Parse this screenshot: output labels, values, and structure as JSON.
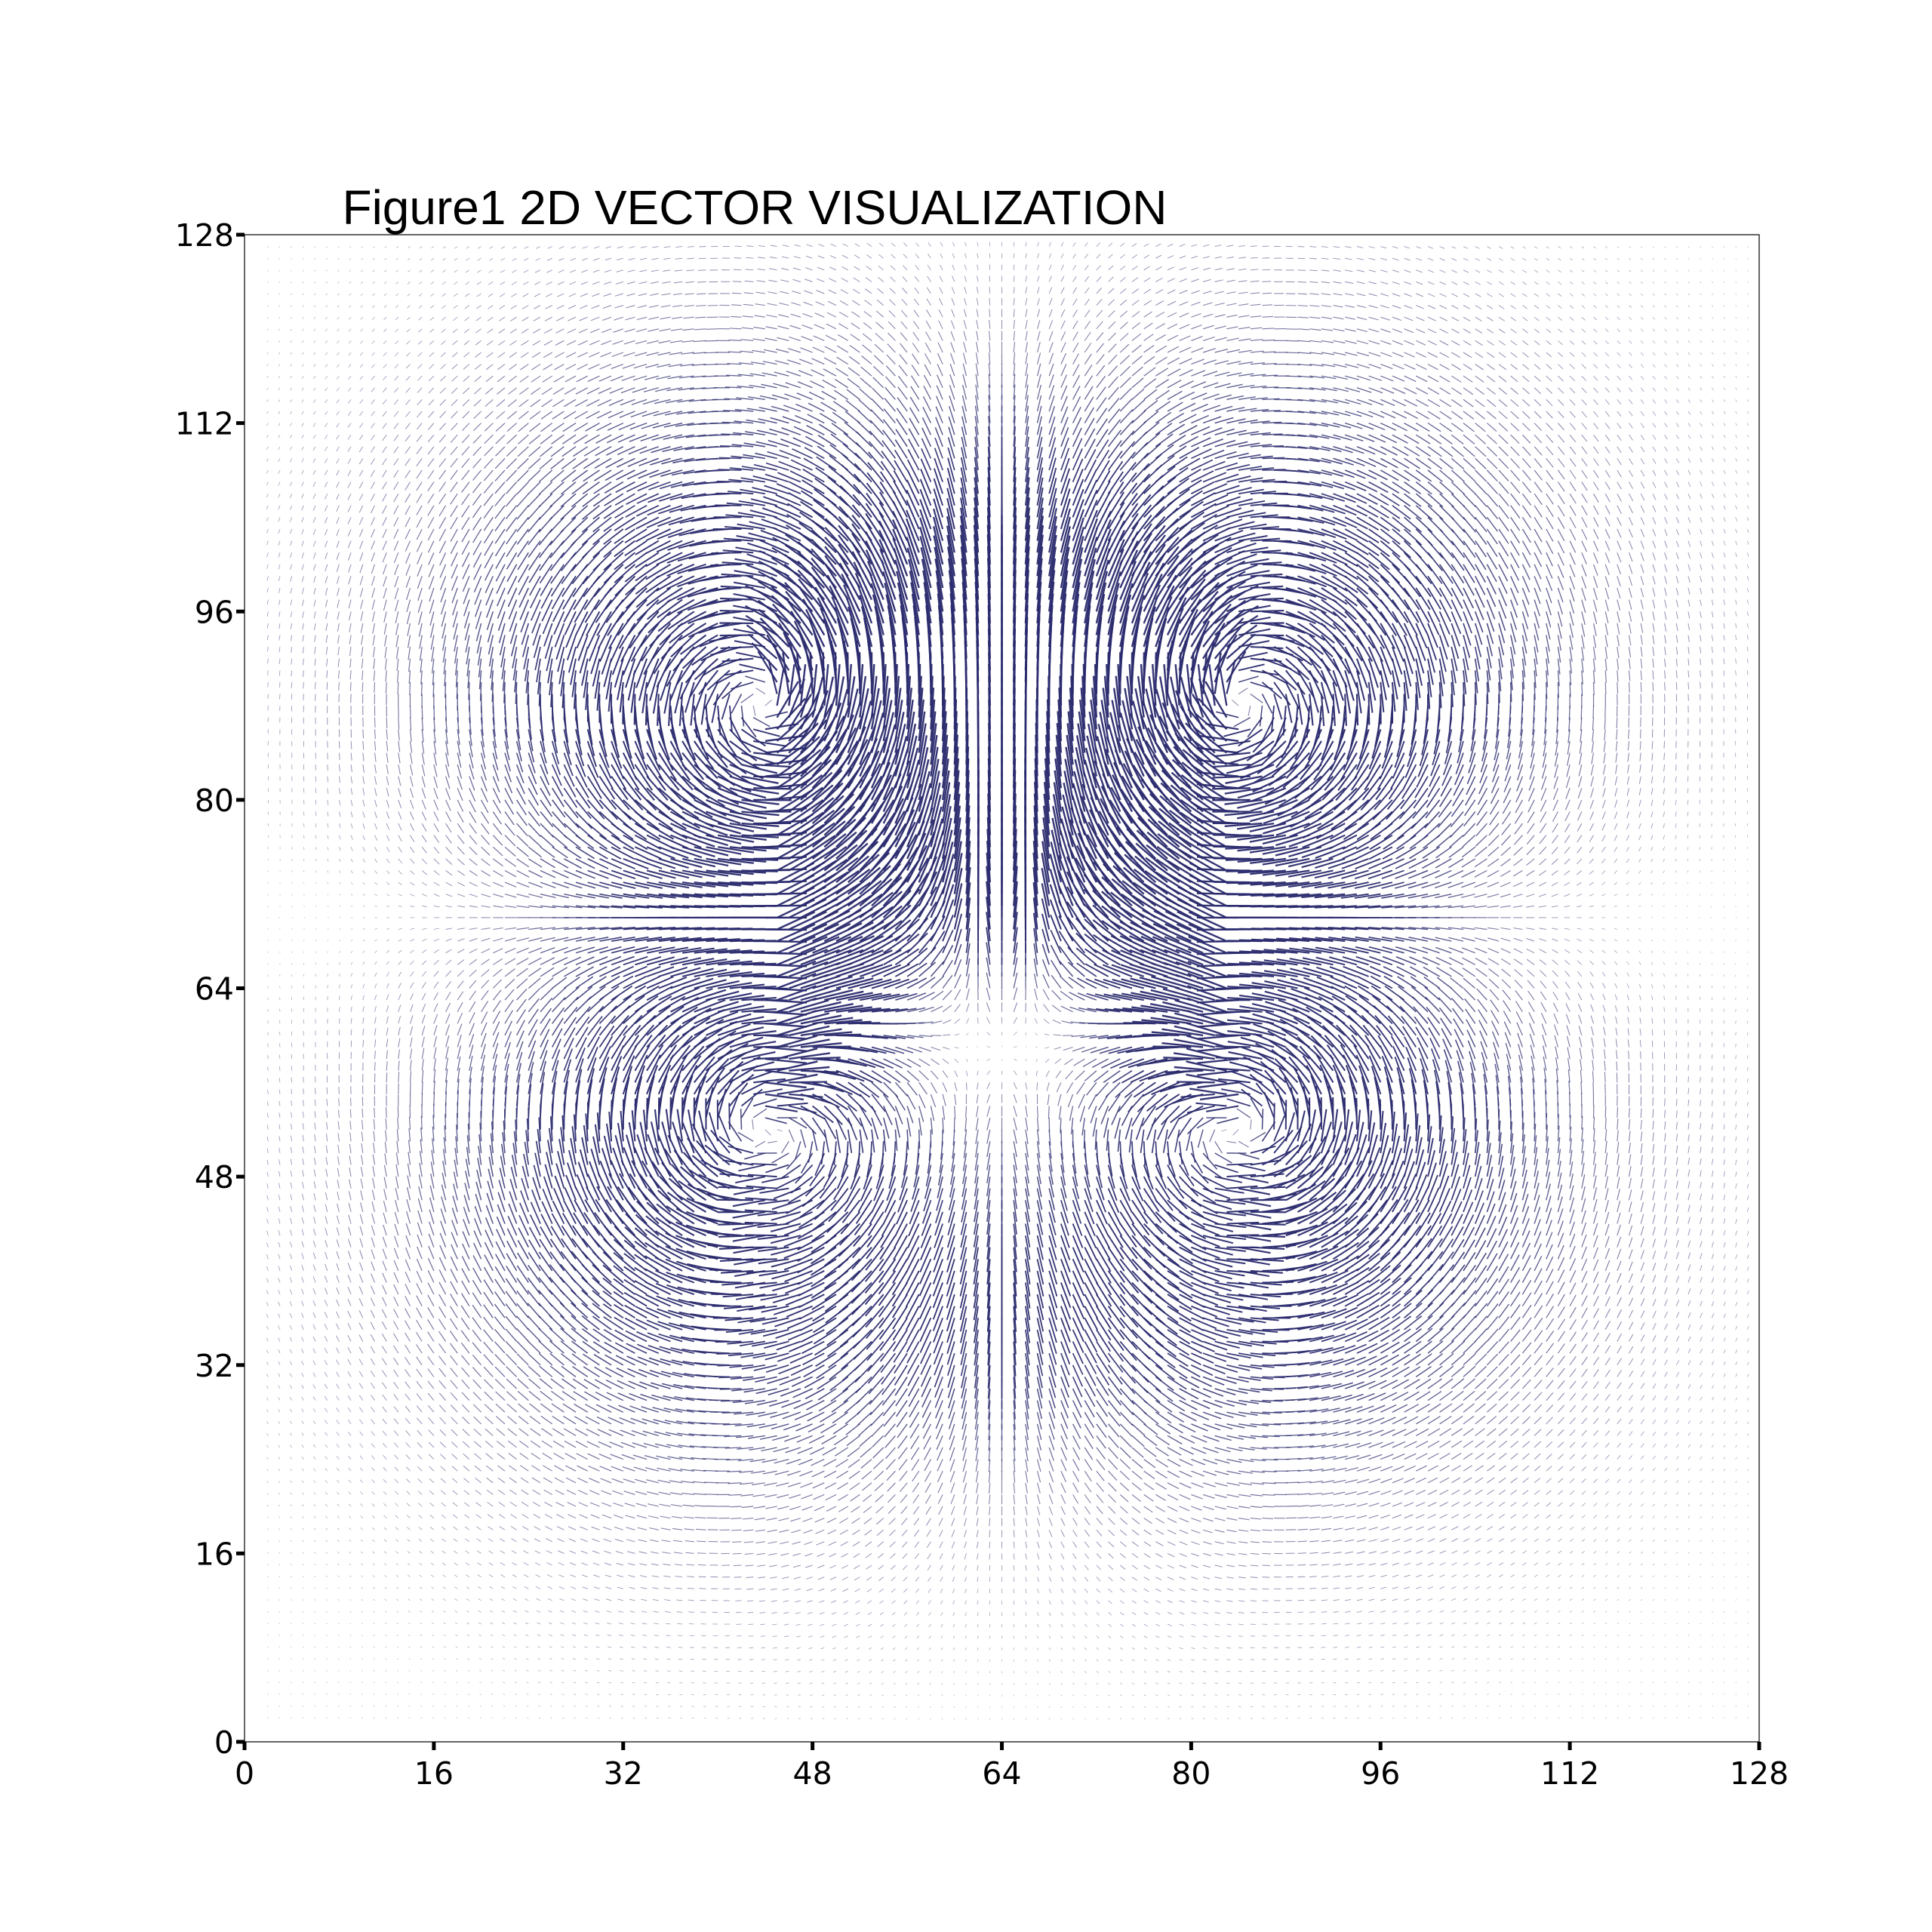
{
  "chart_data": {
    "type": "quiver",
    "title": "Figure1  2D VECTOR VISUALIZATION",
    "xlabel": "",
    "ylabel": "",
    "xlim": [
      0,
      128
    ],
    "ylim": [
      0,
      128
    ],
    "xticks": [
      0,
      16,
      32,
      48,
      64,
      80,
      96,
      112,
      128
    ],
    "yticks": [
      0,
      16,
      32,
      48,
      64,
      80,
      96,
      112,
      128
    ],
    "xtick_labels": [
      "0",
      "16",
      "32",
      "48",
      "64",
      "80",
      "96",
      "112",
      "128"
    ],
    "ytick_labels": [
      "0",
      "16",
      "32",
      "48",
      "64",
      "80",
      "96",
      "112",
      "128"
    ],
    "grid": false,
    "grid_spacing": 1,
    "grid_range": [
      2,
      127
    ],
    "vector_color": "#2a2a6e",
    "field": {
      "symmetry": "mirror about x = 64",
      "vortices": [
        {
          "x": 44,
          "y": 88,
          "strength": 1.0
        },
        {
          "x": 84,
          "y": 88,
          "strength": -1.0
        },
        {
          "x": 44,
          "y": 52,
          "strength": -1.0
        },
        {
          "x": 84,
          "y": 52,
          "strength": 1.0
        }
      ],
      "central_jet": {
        "x_range": [
          50,
          78
        ],
        "y_range": [
          36,
          98
        ],
        "direction": "vertical"
      }
    }
  }
}
